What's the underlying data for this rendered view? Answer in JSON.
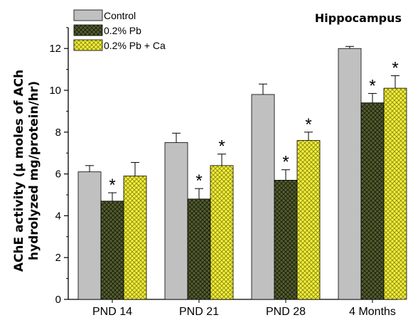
{
  "chart_data": {
    "type": "bar",
    "title": "Hippocampus",
    "ylabel_line1": "AChE activity (µ moles of ACh",
    "ylabel_line2": "hydrolyzed mg/protein/hr)",
    "xlabel": "",
    "categories": [
      "PND 14",
      "PND 21",
      "PND 28",
      "4 Months"
    ],
    "ylim": [
      0,
      13
    ],
    "yticks": [
      0,
      2,
      4,
      6,
      8,
      10,
      12
    ],
    "grid": false,
    "legend_position": "top-left",
    "significance_marker": "*",
    "series": [
      {
        "name": "Control",
        "values": [
          6.1,
          7.5,
          9.8,
          12.0
        ],
        "errors": [
          0.3,
          0.45,
          0.5,
          0.1
        ],
        "significant": [
          false,
          false,
          false,
          false
        ],
        "color": "#c0c0c0",
        "pattern": "solid"
      },
      {
        "name": "0.2% Pb",
        "values": [
          4.7,
          4.8,
          5.7,
          9.4
        ],
        "errors": [
          0.4,
          0.5,
          0.5,
          0.45
        ],
        "significant": [
          true,
          true,
          true,
          true
        ],
        "color": "#555f2e",
        "pattern": "crosshatch"
      },
      {
        "name": "0.2% Pb + Ca",
        "values": [
          5.9,
          6.4,
          7.6,
          10.1
        ],
        "errors": [
          0.65,
          0.55,
          0.4,
          0.6
        ],
        "significant": [
          false,
          true,
          true,
          true
        ],
        "color": "#f2ef3a",
        "pattern": "crosshatch"
      }
    ]
  }
}
